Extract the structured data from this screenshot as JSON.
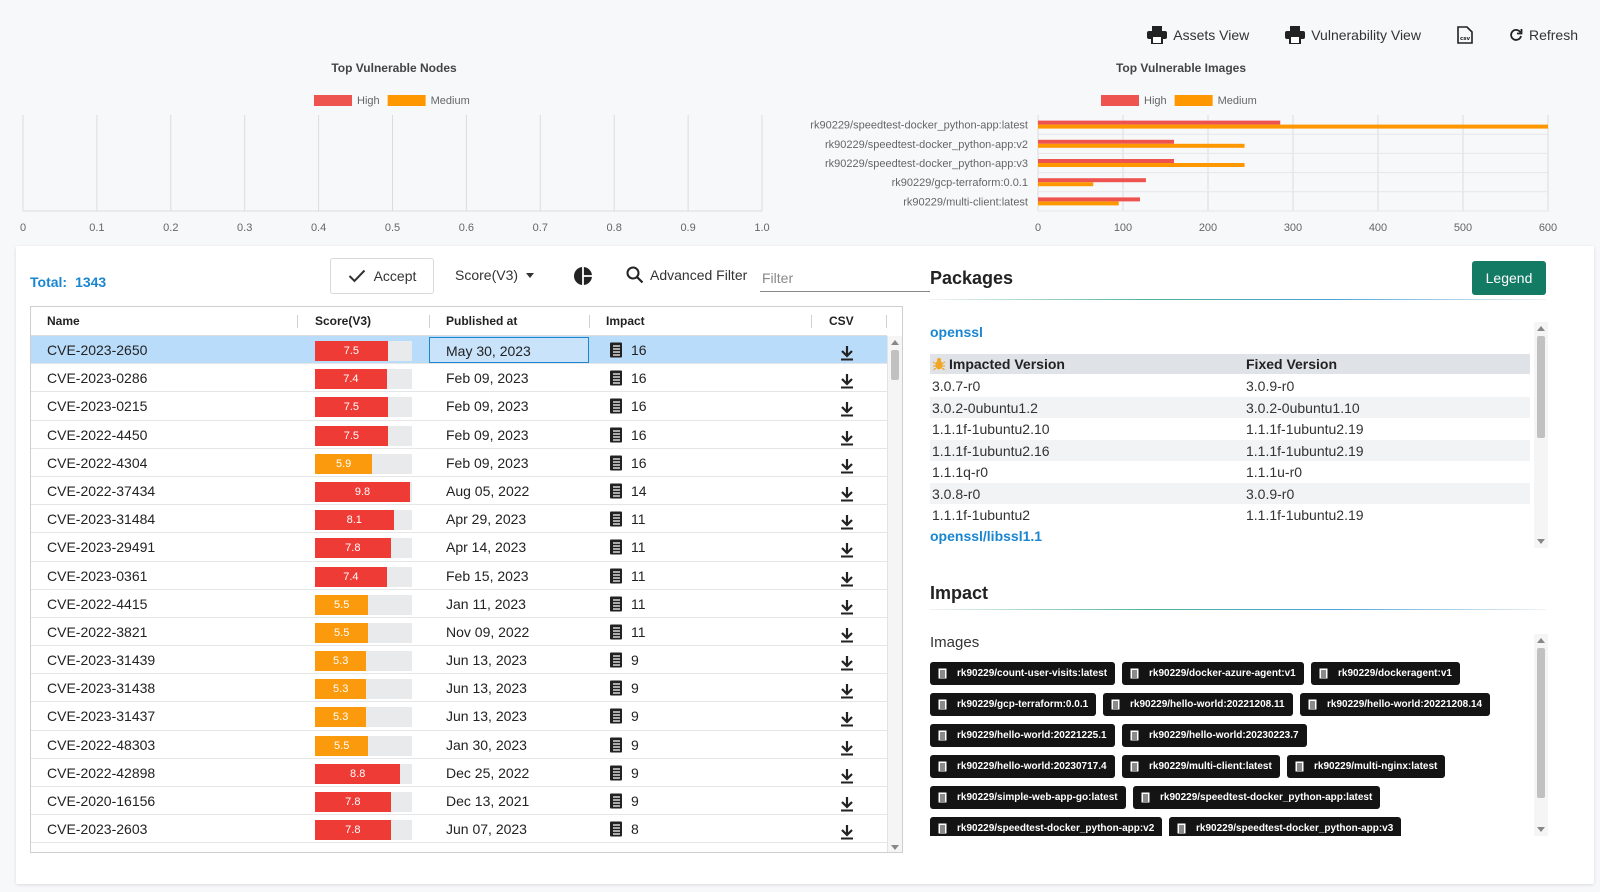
{
  "toolbar": {
    "assets_view": "Assets View",
    "vulnerability_view": "Vulnerability View",
    "csv_icon": "csv-file-icon",
    "refresh": "Refresh"
  },
  "chart_data": [
    {
      "type": "bar",
      "orientation": "horizontal",
      "title": "Top Vulnerable Nodes",
      "legend": [
        "High",
        "Medium"
      ],
      "legend_position": "top",
      "categories": [],
      "series": [
        {
          "name": "High",
          "values": [],
          "color": "#ef5350"
        },
        {
          "name": "Medium",
          "values": [],
          "color": "#ff9800"
        }
      ],
      "xlim": [
        0,
        1.0
      ],
      "xticks": [
        "0",
        "0.1",
        "0.2",
        "0.3",
        "0.4",
        "0.5",
        "0.6",
        "0.7",
        "0.8",
        "0.9",
        "1.0"
      ],
      "grid": true
    },
    {
      "type": "bar",
      "orientation": "horizontal",
      "title": "Top Vulnerable Images",
      "legend": [
        "High",
        "Medium"
      ],
      "legend_position": "top",
      "categories": [
        "rk90229/speedtest-docker_python-app:latest",
        "rk90229/speedtest-docker_python-app:v2",
        "rk90229/speedtest-docker_python-app:v3",
        "rk90229/gcp-terraform:0.0.1",
        "rk90229/multi-client:latest"
      ],
      "series": [
        {
          "name": "High",
          "values": [
            285,
            160,
            160,
            127,
            120
          ],
          "color": "#ef5350"
        },
        {
          "name": "Medium",
          "values": [
            600,
            243,
            243,
            65,
            95
          ],
          "color": "#ff9800"
        }
      ],
      "xlim": [
        0,
        600
      ],
      "xticks": [
        "0",
        "100",
        "200",
        "300",
        "400",
        "500",
        "600"
      ],
      "grid": true
    }
  ],
  "controls": {
    "total_label": "Total:",
    "total_value": "1343",
    "accept": "Accept",
    "score_select": "Score(V3)",
    "advanced_filter": "Advanced Filter",
    "filter_placeholder": "Filter"
  },
  "table": {
    "columns": [
      "Name",
      "Score(V3)",
      "Published at",
      "Impact",
      "CSV"
    ],
    "rows": [
      {
        "name": "CVE-2023-2650",
        "score": "7.5",
        "level": "high",
        "published": "May 30, 2023",
        "impact": "16"
      },
      {
        "name": "CVE-2023-0286",
        "score": "7.4",
        "level": "high",
        "published": "Feb 09, 2023",
        "impact": "16"
      },
      {
        "name": "CVE-2023-0215",
        "score": "7.5",
        "level": "high",
        "published": "Feb 09, 2023",
        "impact": "16"
      },
      {
        "name": "CVE-2022-4450",
        "score": "7.5",
        "level": "high",
        "published": "Feb 09, 2023",
        "impact": "16"
      },
      {
        "name": "CVE-2022-4304",
        "score": "5.9",
        "level": "medium",
        "published": "Feb 09, 2023",
        "impact": "16"
      },
      {
        "name": "CVE-2022-37434",
        "score": "9.8",
        "level": "high",
        "published": "Aug 05, 2022",
        "impact": "14"
      },
      {
        "name": "CVE-2023-31484",
        "score": "8.1",
        "level": "high",
        "published": "Apr 29, 2023",
        "impact": "11"
      },
      {
        "name": "CVE-2023-29491",
        "score": "7.8",
        "level": "high",
        "published": "Apr 14, 2023",
        "impact": "11"
      },
      {
        "name": "CVE-2023-0361",
        "score": "7.4",
        "level": "high",
        "published": "Feb 15, 2023",
        "impact": "11"
      },
      {
        "name": "CVE-2022-4415",
        "score": "5.5",
        "level": "medium",
        "published": "Jan 11, 2023",
        "impact": "11"
      },
      {
        "name": "CVE-2022-3821",
        "score": "5.5",
        "level": "medium",
        "published": "Nov 09, 2022",
        "impact": "11"
      },
      {
        "name": "CVE-2023-31439",
        "score": "5.3",
        "level": "medium",
        "published": "Jun 13, 2023",
        "impact": "9"
      },
      {
        "name": "CVE-2023-31438",
        "score": "5.3",
        "level": "medium",
        "published": "Jun 13, 2023",
        "impact": "9"
      },
      {
        "name": "CVE-2023-31437",
        "score": "5.3",
        "level": "medium",
        "published": "Jun 13, 2023",
        "impact": "9"
      },
      {
        "name": "CVE-2022-48303",
        "score": "5.5",
        "level": "medium",
        "published": "Jan 30, 2023",
        "impact": "9"
      },
      {
        "name": "CVE-2022-42898",
        "score": "8.8",
        "level": "high",
        "published": "Dec 25, 2022",
        "impact": "9"
      },
      {
        "name": "CVE-2020-16156",
        "score": "7.8",
        "level": "high",
        "published": "Dec 13, 2021",
        "impact": "9"
      },
      {
        "name": "CVE-2023-2603",
        "score": "7.8",
        "level": "high",
        "published": "Jun 07, 2023",
        "impact": "8"
      }
    ]
  },
  "packages": {
    "title": "Packages",
    "legend_button": "Legend",
    "items": [
      {
        "name": "openssl",
        "impacted_header": "Impacted Version",
        "fixed_header": "Fixed Version",
        "versions": [
          {
            "impacted": "3.0.7-r0",
            "fixed": "3.0.9-r0"
          },
          {
            "impacted": "3.0.2-0ubuntu1.2",
            "fixed": "3.0.2-0ubuntu1.10"
          },
          {
            "impacted": "1.1.1f-1ubuntu2.10",
            "fixed": "1.1.1f-1ubuntu2.19"
          },
          {
            "impacted": "1.1.1f-1ubuntu2.16",
            "fixed": "1.1.1f-1ubuntu2.19"
          },
          {
            "impacted": "1.1.1q-r0",
            "fixed": "1.1.1u-r0"
          },
          {
            "impacted": "3.0.8-r0",
            "fixed": "3.0.9-r0"
          },
          {
            "impacted": "1.1.1f-1ubuntu2",
            "fixed": "1.1.1f-1ubuntu2.19"
          }
        ]
      },
      {
        "name": "openssl/libssl1.1"
      }
    ]
  },
  "impact": {
    "title": "Impact",
    "images_label": "Images",
    "images": [
      "rk90229/count-user-visits:latest",
      "rk90229/docker-azure-agent:v1",
      "rk90229/dockeragent:v1",
      "rk90229/gcp-terraform:0.0.1",
      "rk90229/hello-world:20221208.11",
      "rk90229/hello-world:20221208.14",
      "rk90229/hello-world:20221225.1",
      "rk90229/hello-world:20230223.7",
      "rk90229/hello-world:20230717.4",
      "rk90229/multi-client:latest",
      "rk90229/multi-nginx:latest",
      "rk90229/simple-web-app-go:latest",
      "rk90229/speedtest-docker_python-app:latest",
      "rk90229/speedtest-docker_python-app:v2",
      "rk90229/speedtest-docker_python-app:v3"
    ]
  },
  "colors": {
    "high": "#ef3b36",
    "medium": "#fb9a0c",
    "accent": "#1a86d0",
    "legend_button": "#137a64",
    "selected_row": "#b9dcfb"
  }
}
